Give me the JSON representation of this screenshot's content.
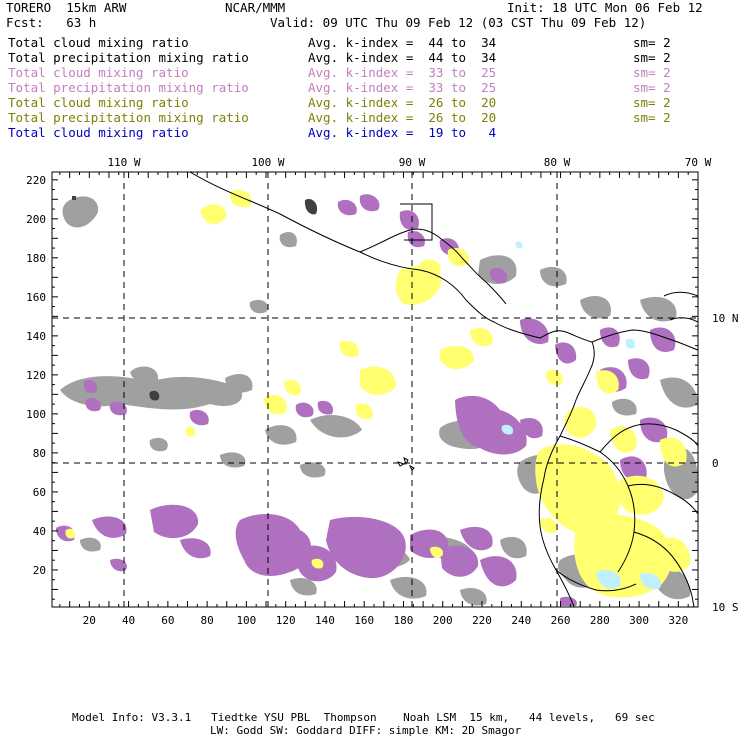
{
  "header": {
    "model": "TORERO  15km ARW",
    "center": "NCAR/MMM",
    "init": "Init: 18 UTC Mon 06 Feb 12",
    "fcst": "Fcst:   63 h",
    "valid": "Valid: 09 UTC Thu 09 Feb 12 (03 CST Thu 09 Feb 12)"
  },
  "legend": [
    {
      "field": "Total cloud mixing ratio",
      "index": "Avg. k-index =  44 to  34",
      "sm": "sm= 2",
      "color": "#000000"
    },
    {
      "field": "Total precipitation mixing ratio",
      "index": "Avg. k-index =  44 to  34",
      "sm": "sm= 2",
      "color": "#000000"
    },
    {
      "field": "Total cloud mixing ratio",
      "index": "Avg. k-index =  33 to  25",
      "sm": "sm= 2",
      "color": "#c080c0"
    },
    {
      "field": "Total precipitation mixing ratio",
      "index": "Avg. k-index =  33 to  25",
      "sm": "sm= 2",
      "color": "#c080c0"
    },
    {
      "field": "Total cloud mixing ratio",
      "index": "Avg. k-index =  26 to  20",
      "sm": "sm= 2",
      "color": "#808000"
    },
    {
      "field": "Total precipitation mixing ratio",
      "index": "Avg. k-index =  26 to  20",
      "sm": "sm= 2",
      "color": "#808000"
    },
    {
      "field": "Total cloud mixing ratio",
      "index": "Avg. k-index =  19 to   4",
      "sm": "",
      "color": "#0000c0"
    }
  ],
  "map": {
    "lon_labels": [
      "110 W",
      "100 W",
      "90 W",
      "80 W",
      "70 W"
    ],
    "lat_labels": [
      "10 N",
      "0",
      "10 S"
    ],
    "x_ticks": [
      "20",
      "40",
      "60",
      "80",
      "100",
      "120",
      "140",
      "160",
      "180",
      "200",
      "220",
      "240",
      "260",
      "280",
      "300",
      "320"
    ],
    "y_ticks": [
      "20",
      "40",
      "60",
      "80",
      "100",
      "120",
      "140",
      "160",
      "180",
      "200",
      "220"
    ],
    "colors": {
      "gray": "#a0a0a0",
      "purple": "#b070c0",
      "yellow": "#ffff70",
      "lightblue": "#c0f0ff",
      "dark": "#404040"
    }
  },
  "footer": {
    "line1": "Model Info: V3.3.1   Tiedtke YSU PBL  Thompson    Noah LSM  15 km,   44 levels,   69 sec",
    "line2": "LW: Godd SW: Goddard DIFF: simple KM: 2D Smagor"
  }
}
